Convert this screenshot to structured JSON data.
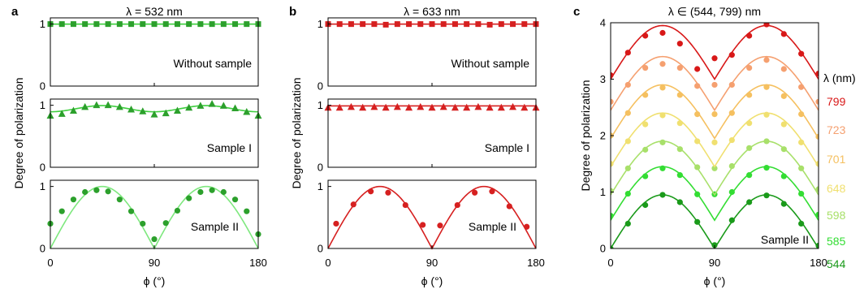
{
  "chart_data": [
    {
      "type": "scatter",
      "panel_label": "a",
      "title": "λ = 532 nm",
      "xlabel": "ϕ (°)",
      "ylabel": "Degree of polarization",
      "xlim": [
        0,
        180
      ],
      "xticks": [
        0,
        90,
        180
      ],
      "subplots": [
        {
          "annotation": "Without sample",
          "ylim": [
            0,
            1.1
          ],
          "yticks": [
            0,
            1
          ],
          "marker": "square",
          "points": {
            "x": [
              0,
              10,
              20,
              30,
              40,
              50,
              60,
              70,
              80,
              90,
              100,
              110,
              120,
              130,
              140,
              150,
              160,
              170,
              180
            ],
            "y": [
              1.0,
              1.0,
              1.0,
              1.0,
              1.0,
              1.0,
              1.0,
              1.0,
              1.0,
              1.0,
              1.0,
              1.0,
              1.0,
              1.0,
              1.0,
              1.0,
              1.0,
              1.0,
              1.0
            ]
          },
          "curve": {
            "model": "constant",
            "value": 1.0
          },
          "color": "#2ca02c",
          "curve_color": "#3fcf3f"
        },
        {
          "annotation": "Sample I",
          "ylim": [
            0,
            1.1
          ],
          "yticks": [
            0,
            1
          ],
          "marker": "triangle",
          "points": {
            "x": [
              0,
              10,
              20,
              30,
              40,
              50,
              60,
              70,
              80,
              90,
              100,
              110,
              120,
              130,
              140,
              150,
              160,
              170,
              180
            ],
            "y": [
              0.83,
              0.86,
              0.91,
              0.97,
              1.0,
              1.0,
              0.97,
              0.93,
              0.9,
              0.85,
              0.87,
              0.91,
              0.96,
              0.99,
              1.02,
              0.99,
              0.95,
              0.89,
              0.83
            ]
          },
          "curve": {
            "model": "baseline_plus_cos4",
            "base": 0.945,
            "amplitude": 0.05
          },
          "color": "#2ca02c",
          "curve_color": "#3fcf3f"
        },
        {
          "annotation": "Sample II",
          "ylim": [
            0,
            1.1
          ],
          "yticks": [
            0,
            1
          ],
          "marker": "circle",
          "points": {
            "x": [
              0,
              10,
              20,
              30,
              40,
              50,
              60,
              70,
              80,
              90,
              100,
              110,
              120,
              130,
              140,
              150,
              160,
              170,
              180
            ],
            "y": [
              0.4,
              0.6,
              0.79,
              0.91,
              0.94,
              0.92,
              0.79,
              0.6,
              0.4,
              0.15,
              0.41,
              0.61,
              0.81,
              0.91,
              0.94,
              0.91,
              0.79,
              0.6,
              0.23
            ]
          },
          "curve": {
            "model": "abs_sin2",
            "amplitude": 1.0
          },
          "color": "#2ca02c",
          "curve_color": "#7ee87e"
        }
      ]
    },
    {
      "type": "scatter",
      "panel_label": "b",
      "title": "λ = 633 nm",
      "xlabel": "ϕ (°)",
      "ylabel": "Degree of polarization",
      "xlim": [
        0,
        180
      ],
      "xticks": [
        0,
        90,
        180
      ],
      "subplots": [
        {
          "annotation": "Without sample",
          "ylim": [
            0,
            1.1
          ],
          "yticks": [
            0,
            1
          ],
          "marker": "square",
          "points": {
            "x": [
              0,
              10,
              20,
              30,
              40,
              50,
              60,
              70,
              80,
              90,
              100,
              110,
              120,
              130,
              140,
              150,
              160,
              170,
              180
            ],
            "y": [
              1.0,
              1.0,
              1.0,
              1.0,
              1.0,
              0.99,
              1.0,
              1.0,
              1.0,
              1.0,
              1.0,
              1.0,
              1.0,
              1.0,
              0.99,
              1.0,
              1.0,
              1.0,
              1.0
            ]
          },
          "curve": {
            "model": "constant",
            "value": 1.0
          },
          "color": "#d62020",
          "curve_color": "#d62020"
        },
        {
          "annotation": "Sample I",
          "ylim": [
            0,
            1.1
          ],
          "yticks": [
            0,
            1
          ],
          "marker": "triangle",
          "points": {
            "x": [
              0,
              10,
              20,
              30,
              40,
              50,
              60,
              70,
              80,
              90,
              100,
              110,
              120,
              130,
              140,
              150,
              160,
              170,
              180
            ],
            "y": [
              0.96,
              0.96,
              0.97,
              0.96,
              0.97,
              0.96,
              0.97,
              0.96,
              0.97,
              0.96,
              0.97,
              0.96,
              0.96,
              0.97,
              0.96,
              0.96,
              0.97,
              0.96,
              0.96
            ]
          },
          "curve": {
            "model": "constant",
            "value": 0.99
          },
          "color": "#d62020",
          "curve_color": "#d62020"
        },
        {
          "annotation": "Sample II",
          "ylim": [
            0,
            1.1
          ],
          "yticks": [
            0,
            1
          ],
          "marker": "circle",
          "points": {
            "x": [
              7,
              22,
              37,
              52,
              67,
              82,
              97,
              112,
              127,
              142,
              157,
              172
            ],
            "y": [
              0.4,
              0.71,
              0.92,
              0.9,
              0.7,
              0.38,
              0.37,
              0.7,
              0.9,
              0.92,
              0.68,
              0.35
            ]
          },
          "curve": {
            "model": "abs_sin2",
            "amplitude": 1.0
          },
          "color": "#d62020",
          "curve_color": "#d62020"
        }
      ]
    },
    {
      "type": "scatter",
      "panel_label": "c",
      "title": "λ ∈ (544, 799) nm",
      "xlabel": "ϕ (°)",
      "ylabel": "Degree of polarization",
      "xlim": [
        0,
        180
      ],
      "ylim": [
        0,
        4
      ],
      "xticks": [
        0,
        90,
        180
      ],
      "yticks": [
        0,
        1,
        2,
        3,
        4
      ],
      "annotation": "Sample II",
      "legend_title": "λ (nm)",
      "legend_position": "right",
      "curve_model": "offset_plus_abs_sin2",
      "x": [
        0,
        15,
        30,
        45,
        60,
        75,
        90,
        105,
        120,
        135,
        150,
        165,
        180
      ],
      "series": [
        {
          "name": "544",
          "color": "#1a9a1a",
          "offset": 0.0,
          "amplitude": 0.95,
          "y": [
            0.0,
            0.44,
            0.77,
            0.95,
            0.82,
            0.47,
            0.06,
            0.5,
            0.82,
            0.94,
            0.79,
            0.44,
            0.05
          ]
        },
        {
          "name": "585",
          "color": "#33dd33",
          "offset": 0.5,
          "amplitude": 0.95,
          "y": [
            0.58,
            0.97,
            1.28,
            1.42,
            1.3,
            0.96,
            0.96,
            1.0,
            1.3,
            1.43,
            1.28,
            0.97,
            0.6
          ]
        },
        {
          "name": "598",
          "color": "#a8e06a",
          "offset": 0.95,
          "amplitude": 0.95,
          "y": [
            1.02,
            1.42,
            1.75,
            1.88,
            1.76,
            1.44,
            1.42,
            1.46,
            1.78,
            1.9,
            1.76,
            1.42,
            1.05
          ]
        },
        {
          "name": "648",
          "color": "#f0e070",
          "offset": 1.45,
          "amplitude": 0.95,
          "y": [
            1.5,
            1.9,
            2.2,
            2.36,
            2.22,
            1.9,
            1.88,
            1.92,
            2.22,
            2.37,
            2.2,
            1.88,
            1.5
          ]
        },
        {
          "name": "701",
          "color": "#f5c060",
          "offset": 1.95,
          "amplitude": 0.95,
          "y": [
            2.0,
            2.4,
            2.72,
            2.85,
            2.72,
            2.38,
            2.38,
            2.4,
            2.72,
            2.86,
            2.7,
            2.38,
            1.98
          ]
        },
        {
          "name": "723",
          "color": "#f5a070",
          "offset": 2.45,
          "amplitude": 0.95,
          "y": [
            2.6,
            2.9,
            3.2,
            3.27,
            3.2,
            2.88,
            2.9,
            2.9,
            3.2,
            3.34,
            3.18,
            2.86,
            2.6
          ]
        },
        {
          "name": "799",
          "color": "#d81818",
          "offset": 3.0,
          "amplitude": 0.95,
          "y": [
            3.07,
            3.47,
            3.77,
            3.82,
            3.63,
            3.18,
            3.37,
            3.43,
            3.77,
            3.97,
            3.8,
            3.45,
            3.1
          ]
        }
      ]
    }
  ]
}
